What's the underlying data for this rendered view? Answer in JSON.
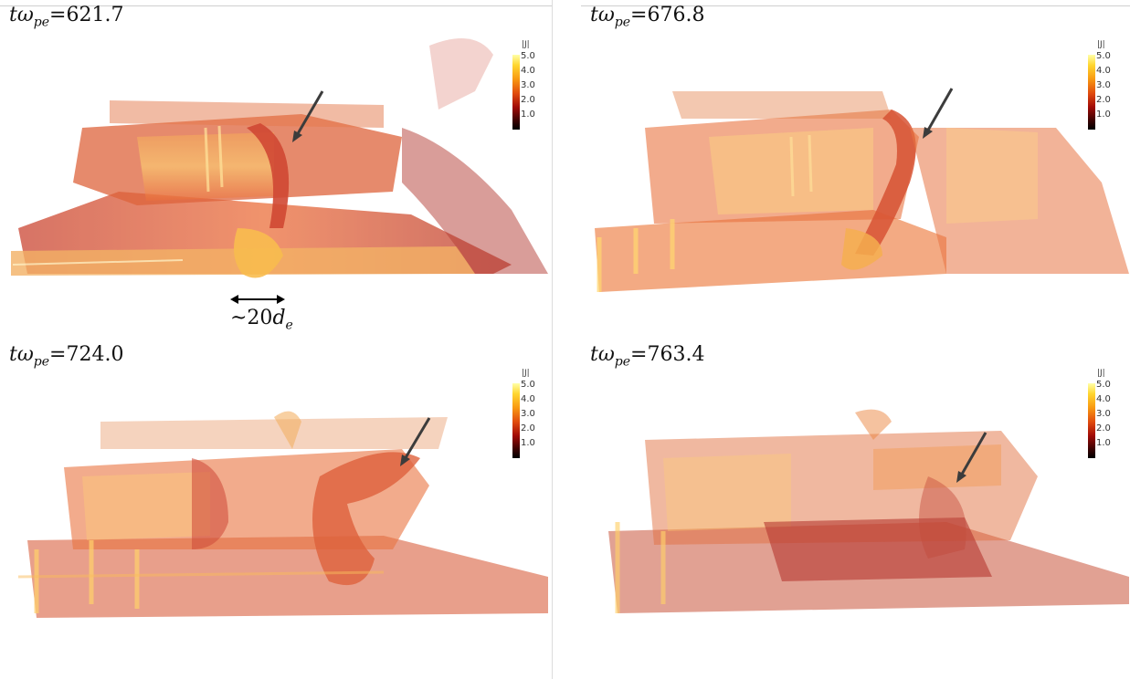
{
  "panels": [
    {
      "time_prefix": "t",
      "time_symbol": "ω",
      "time_sub": "pe",
      "time_value": "=621.7"
    },
    {
      "time_prefix": "t",
      "time_symbol": "ω",
      "time_sub": "pe",
      "time_value": "=676.8"
    },
    {
      "time_prefix": "t",
      "time_symbol": "ω",
      "time_sub": "pe",
      "time_value": "=724.0"
    },
    {
      "time_prefix": "t",
      "time_symbol": "ω",
      "time_sub": "pe",
      "time_value": "=763.4"
    }
  ],
  "colorbar": {
    "title": "|J|",
    "ticks": [
      "5.0",
      "4.0",
      "3.0",
      "2.0",
      "1.0"
    ]
  },
  "scale_bar": {
    "prefix": "~20",
    "symbol": "d",
    "sub": "e"
  },
  "colors": {
    "dark_red": "#a8140c",
    "red": "#d93a12",
    "orange": "#f07d1c",
    "yellow": "#ffd95a",
    "arrow": "#3c3c3c"
  }
}
